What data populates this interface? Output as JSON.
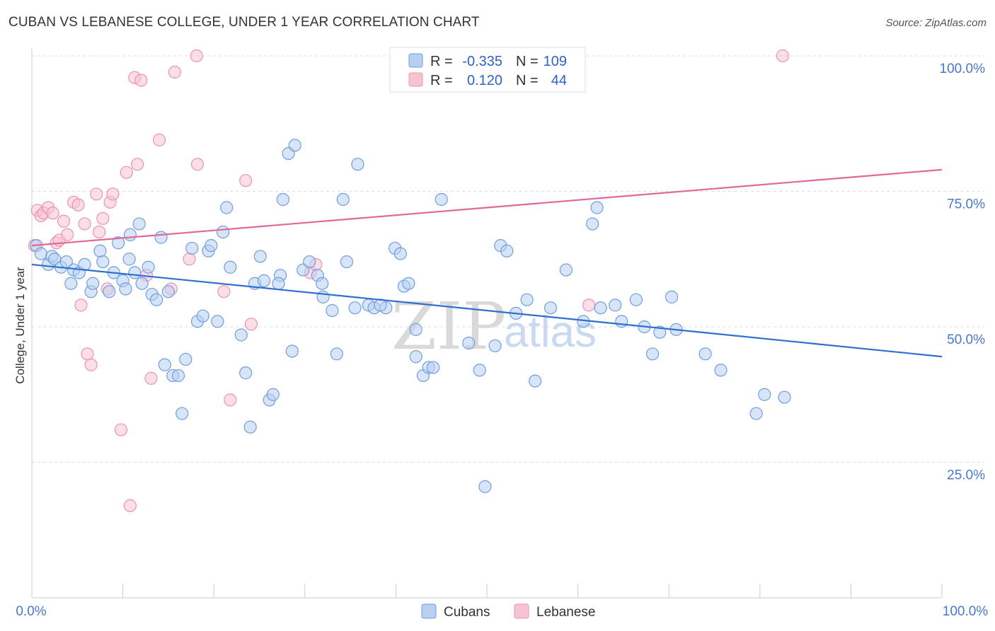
{
  "title": "CUBAN VS LEBANESE COLLEGE, UNDER 1 YEAR CORRELATION CHART",
  "source": "Source: ZipAtlas.com",
  "watermark": {
    "zip": "ZIP",
    "atlas": "atlas"
  },
  "colors": {
    "cubans_fill": "#b8cff2",
    "cubans_stroke": "#6f9ee0",
    "cubans_line": "#2f6fd1",
    "lebanese_fill": "#f7c3d3",
    "lebanese_stroke": "#eb93b0",
    "lebanese_line": "#e2689a",
    "axis_label": "#4a78c9",
    "grid": "#dddddd"
  },
  "legend": {
    "rows": [
      {
        "r_label": "R =",
        "r_value": "-0.335",
        "n_label": "N =",
        "n_value": "109"
      },
      {
        "r_label": "R =",
        "r_value": "0.120",
        "n_label": "N =",
        "n_value": "44"
      }
    ]
  },
  "chart_data": {
    "type": "scatter",
    "ylabel": "College, Under 1 year",
    "xlim": [
      0,
      100
    ],
    "ylim": [
      0,
      105
    ],
    "x_tick_labels": [
      "0.0%",
      "100.0%"
    ],
    "y_ticks": [
      25,
      50,
      75,
      100
    ],
    "y_tick_labels": [
      "25.0%",
      "50.0%",
      "75.0%",
      "100.0%"
    ],
    "grid": true,
    "legend_position": "top-center",
    "series": [
      {
        "name": "Cubans",
        "r": -0.335,
        "n": 109,
        "trend": {
          "x": [
            0,
            100
          ],
          "y": [
            61.5,
            44.5
          ]
        },
        "points": [
          [
            0.5,
            65.0
          ],
          [
            1.0,
            63.5
          ],
          [
            1.8,
            61.5
          ],
          [
            2.2,
            63.0
          ],
          [
            2.5,
            62.5
          ],
          [
            3.2,
            61.0
          ],
          [
            3.8,
            62.0
          ],
          [
            4.3,
            58.0
          ],
          [
            4.6,
            60.5
          ],
          [
            5.2,
            60.0
          ],
          [
            5.8,
            61.5
          ],
          [
            6.5,
            56.5
          ],
          [
            6.7,
            58.0
          ],
          [
            7.5,
            64.0
          ],
          [
            7.8,
            62.0
          ],
          [
            8.5,
            56.5
          ],
          [
            9.0,
            60.0
          ],
          [
            9.5,
            65.5
          ],
          [
            10.0,
            58.5
          ],
          [
            10.3,
            57.0
          ],
          [
            10.8,
            67.0
          ],
          [
            11.3,
            60.0
          ],
          [
            11.8,
            69.0
          ],
          [
            12.1,
            58.0
          ],
          [
            12.8,
            61.0
          ],
          [
            13.2,
            56.0
          ],
          [
            13.7,
            55.0
          ],
          [
            14.2,
            66.5
          ],
          [
            14.6,
            43.0
          ],
          [
            15.0,
            56.5
          ],
          [
            15.5,
            41.0
          ],
          [
            16.1,
            41.0
          ],
          [
            16.5,
            34.0
          ],
          [
            16.9,
            44.0
          ],
          [
            17.6,
            64.5
          ],
          [
            18.2,
            51.0
          ],
          [
            18.8,
            52.0
          ],
          [
            19.4,
            64.0
          ],
          [
            19.7,
            65.0
          ],
          [
            20.4,
            51.0
          ],
          [
            21.0,
            67.5
          ],
          [
            21.4,
            72.0
          ],
          [
            21.8,
            61.0
          ],
          [
            23.0,
            48.5
          ],
          [
            23.5,
            41.5
          ],
          [
            24.0,
            31.5
          ],
          [
            24.5,
            58.0
          ],
          [
            25.1,
            63.0
          ],
          [
            25.5,
            58.5
          ],
          [
            26.1,
            36.5
          ],
          [
            26.5,
            37.5
          ],
          [
            27.3,
            59.5
          ],
          [
            27.6,
            73.5
          ],
          [
            28.2,
            82.0
          ],
          [
            28.6,
            45.5
          ],
          [
            28.9,
            83.5
          ],
          [
            29.8,
            60.5
          ],
          [
            30.5,
            62.0
          ],
          [
            31.4,
            59.5
          ],
          [
            31.9,
            58.0
          ],
          [
            32.0,
            55.5
          ],
          [
            33.0,
            53.0
          ],
          [
            33.5,
            45.0
          ],
          [
            34.2,
            73.5
          ],
          [
            34.6,
            62.0
          ],
          [
            35.5,
            53.5
          ],
          [
            35.8,
            80.0
          ],
          [
            37.0,
            54.0
          ],
          [
            37.6,
            53.5
          ],
          [
            38.9,
            53.5
          ],
          [
            39.9,
            64.5
          ],
          [
            40.5,
            63.5
          ],
          [
            40.9,
            57.5
          ],
          [
            41.4,
            58.0
          ],
          [
            42.2,
            49.5
          ],
          [
            43.0,
            41.0
          ],
          [
            43.6,
            42.5
          ],
          [
            44.1,
            42.5
          ],
          [
            45.0,
            73.5
          ],
          [
            48.0,
            47.0
          ],
          [
            49.2,
            42.0
          ],
          [
            49.8,
            20.5
          ],
          [
            50.9,
            46.5
          ],
          [
            51.5,
            65.0
          ],
          [
            52.2,
            64.0
          ],
          [
            53.2,
            52.5
          ],
          [
            54.4,
            55.0
          ],
          [
            55.3,
            40.0
          ],
          [
            57.0,
            53.5
          ],
          [
            58.7,
            60.5
          ],
          [
            60.6,
            51.0
          ],
          [
            61.6,
            69.0
          ],
          [
            62.1,
            72.0
          ],
          [
            62.5,
            53.5
          ],
          [
            64.1,
            54.0
          ],
          [
            64.8,
            51.0
          ],
          [
            66.4,
            55.0
          ],
          [
            67.3,
            50.0
          ],
          [
            68.2,
            45.0
          ],
          [
            69.0,
            49.0
          ],
          [
            70.3,
            55.5
          ],
          [
            70.8,
            49.5
          ],
          [
            74.0,
            45.0
          ],
          [
            75.7,
            42.0
          ],
          [
            79.6,
            34.0
          ],
          [
            80.5,
            37.5
          ],
          [
            82.7,
            37.0
          ],
          [
            42.2,
            44.5
          ],
          [
            38.3,
            54.0
          ],
          [
            27.1,
            58.0
          ],
          [
            10.7,
            62.5
          ]
        ]
      },
      {
        "name": "Lebanese",
        "r": 0.12,
        "n": 44,
        "trend": {
          "x": [
            0,
            100
          ],
          "y": [
            65.0,
            79.0
          ]
        },
        "points": [
          [
            0.3,
            65.0
          ],
          [
            0.6,
            71.5
          ],
          [
            1.0,
            70.5
          ],
          [
            1.3,
            71.0
          ],
          [
            1.8,
            72.0
          ],
          [
            2.3,
            71.0
          ],
          [
            2.7,
            65.5
          ],
          [
            3.0,
            66.0
          ],
          [
            3.5,
            69.5
          ],
          [
            3.9,
            67.0
          ],
          [
            4.6,
            73.0
          ],
          [
            5.1,
            72.5
          ],
          [
            5.4,
            54.0
          ],
          [
            5.8,
            69.0
          ],
          [
            6.1,
            45.0
          ],
          [
            6.5,
            43.0
          ],
          [
            7.1,
            74.5
          ],
          [
            7.4,
            67.5
          ],
          [
            7.8,
            70.0
          ],
          [
            8.3,
            57.0
          ],
          [
            8.6,
            73.0
          ],
          [
            8.9,
            74.5
          ],
          [
            9.8,
            31.0
          ],
          [
            10.4,
            78.5
          ],
          [
            10.8,
            17.0
          ],
          [
            11.3,
            96.0
          ],
          [
            11.6,
            80.0
          ],
          [
            12.0,
            95.5
          ],
          [
            12.6,
            59.5
          ],
          [
            13.1,
            40.5
          ],
          [
            14.0,
            84.5
          ],
          [
            15.3,
            57.0
          ],
          [
            15.7,
            97.0
          ],
          [
            17.3,
            62.5
          ],
          [
            18.1,
            100.0
          ],
          [
            18.2,
            80.0
          ],
          [
            21.1,
            56.5
          ],
          [
            21.8,
            36.5
          ],
          [
            23.5,
            77.0
          ],
          [
            24.1,
            50.5
          ],
          [
            30.6,
            60.0
          ],
          [
            31.2,
            61.5
          ],
          [
            61.2,
            54.0
          ],
          [
            82.5,
            100.0
          ]
        ]
      }
    ]
  },
  "bottom_legend": [
    {
      "label": "Cubans"
    },
    {
      "label": "Lebanese"
    }
  ]
}
